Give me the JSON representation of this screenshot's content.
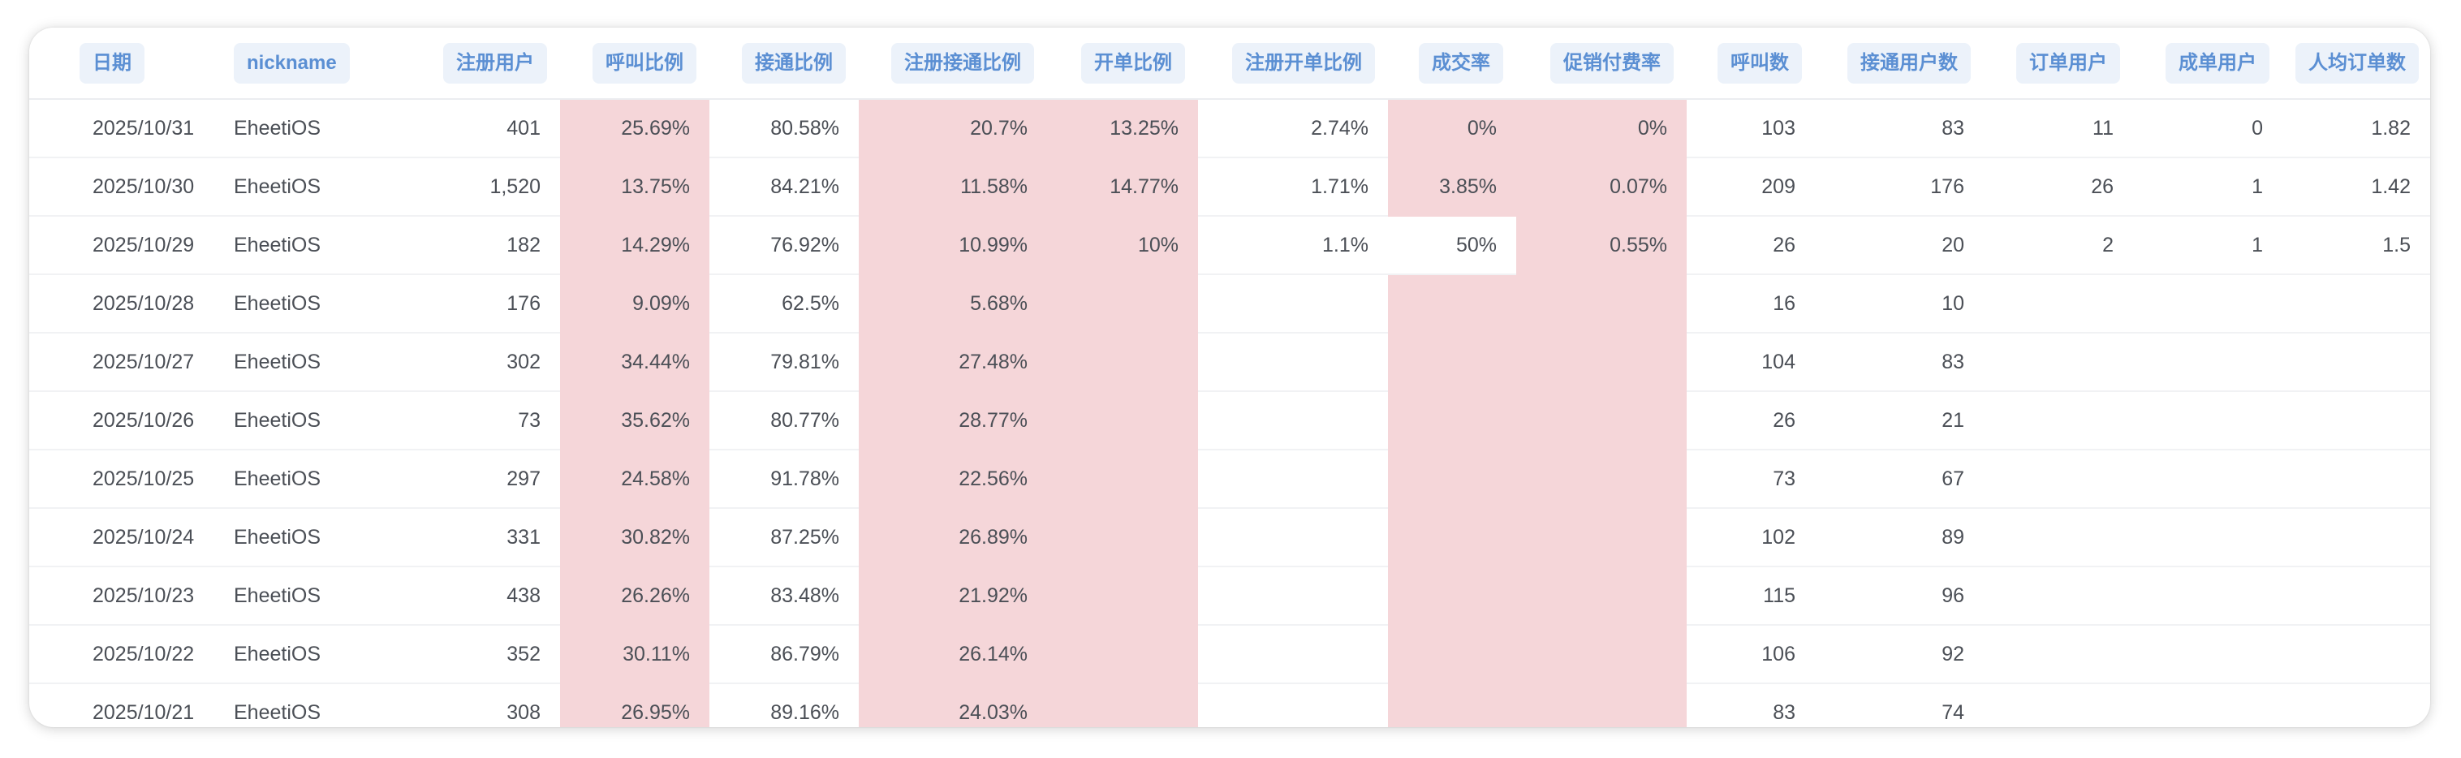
{
  "table": {
    "columns": [
      {
        "key": "date",
        "label": "日期",
        "align": "left"
      },
      {
        "key": "nickname",
        "label": "nickname",
        "align": "left"
      },
      {
        "key": "reg_users",
        "label": "注册用户",
        "align": "right"
      },
      {
        "key": "call_ratio",
        "label": "呼叫比例",
        "align": "right"
      },
      {
        "key": "connect_ratio",
        "label": "接通比例",
        "align": "right"
      },
      {
        "key": "reg_connect_ratio",
        "label": "注册接通比例",
        "align": "right"
      },
      {
        "key": "open_order_ratio",
        "label": "开单比例",
        "align": "right"
      },
      {
        "key": "reg_open_order_ratio",
        "label": "注册开单比例",
        "align": "right"
      },
      {
        "key": "deal_rate",
        "label": "成交率",
        "align": "right"
      },
      {
        "key": "promo_pay_rate",
        "label": "促销付费率",
        "align": "right"
      },
      {
        "key": "calls",
        "label": "呼叫数",
        "align": "right"
      },
      {
        "key": "connected_users",
        "label": "接通用户数",
        "align": "right"
      },
      {
        "key": "order_users",
        "label": "订单用户",
        "align": "right"
      },
      {
        "key": "deal_users",
        "label": "成单用户",
        "align": "right"
      },
      {
        "key": "avg_orders",
        "label": "人均订单数",
        "align": "right"
      }
    ],
    "rows": [
      [
        "2025/10/31",
        "EheetiOS",
        "401",
        "25.69%",
        "80.58%",
        "20.7%",
        "13.25%",
        "2.74%",
        "0%",
        "0%",
        "103",
        "83",
        "11",
        "0",
        "1.82"
      ],
      [
        "2025/10/30",
        "EheetiOS",
        "1,520",
        "13.75%",
        "84.21%",
        "11.58%",
        "14.77%",
        "1.71%",
        "3.85%",
        "0.07%",
        "209",
        "176",
        "26",
        "1",
        "1.42"
      ],
      [
        "2025/10/29",
        "EheetiOS",
        "182",
        "14.29%",
        "76.92%",
        "10.99%",
        "10%",
        "1.1%",
        "50%",
        "0.55%",
        "26",
        "20",
        "2",
        "1",
        "1.5"
      ],
      [
        "2025/10/28",
        "EheetiOS",
        "176",
        "9.09%",
        "62.5%",
        "5.68%",
        "",
        "",
        "",
        "",
        "16",
        "10",
        "",
        "",
        ""
      ],
      [
        "2025/10/27",
        "EheetiOS",
        "302",
        "34.44%",
        "79.81%",
        "27.48%",
        "",
        "",
        "",
        "",
        "104",
        "83",
        "",
        "",
        ""
      ],
      [
        "2025/10/26",
        "EheetiOS",
        "73",
        "35.62%",
        "80.77%",
        "28.77%",
        "",
        "",
        "",
        "",
        "26",
        "21",
        "",
        "",
        ""
      ],
      [
        "2025/10/25",
        "EheetiOS",
        "297",
        "24.58%",
        "91.78%",
        "22.56%",
        "",
        "",
        "",
        "",
        "73",
        "67",
        "",
        "",
        ""
      ],
      [
        "2025/10/24",
        "EheetiOS",
        "331",
        "30.82%",
        "87.25%",
        "26.89%",
        "",
        "",
        "",
        "",
        "102",
        "89",
        "",
        "",
        ""
      ],
      [
        "2025/10/23",
        "EheetiOS",
        "438",
        "26.26%",
        "83.48%",
        "21.92%",
        "",
        "",
        "",
        "",
        "115",
        "96",
        "",
        "",
        ""
      ],
      [
        "2025/10/22",
        "EheetiOS",
        "352",
        "30.11%",
        "86.79%",
        "26.14%",
        "",
        "",
        "",
        "",
        "106",
        "92",
        "",
        "",
        ""
      ],
      [
        "2025/10/21",
        "EheetiOS",
        "308",
        "26.95%",
        "89.16%",
        "24.03%",
        "",
        "",
        "",
        "",
        "83",
        "74",
        "",
        "",
        ""
      ]
    ],
    "highlight_color": "#f5d6d9",
    "highlights": {
      "call_ratio": "all",
      "reg_connect_ratio": "all",
      "open_order_ratio": "all",
      "deal_rate": "all except 2025/10/29",
      "promo_pay_rate": "all"
    }
  },
  "colors": {
    "header_text": "#5b8fd3",
    "header_pill_bg": "#ecf2fa",
    "cell_text": "#4b4f56",
    "highlight": "#f5d6d9"
  }
}
